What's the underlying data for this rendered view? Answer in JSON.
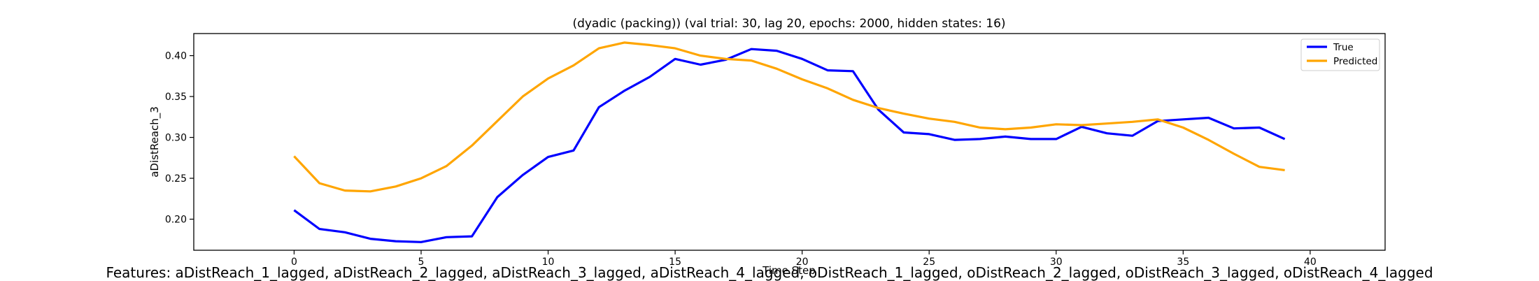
{
  "chart_data": {
    "type": "line",
    "title": "(dyadic (packing)) (val trial: 30, lag 20, epochs: 2000, hidden states: 16)",
    "xlabel": "Time Step",
    "ylabel": "aDistReach_3",
    "xlim": [
      -3.95,
      42.95
    ],
    "ylim": [
      0.162,
      0.427
    ],
    "xticks": [
      0,
      5,
      10,
      15,
      20,
      25,
      30,
      35,
      40
    ],
    "yticks": [
      0.2,
      0.25,
      0.3,
      0.35,
      0.4
    ],
    "grid": false,
    "legend_position": "top-right",
    "x": [
      0,
      1,
      2,
      3,
      4,
      5,
      6,
      7,
      8,
      9,
      10,
      11,
      12,
      13,
      14,
      15,
      16,
      17,
      18,
      19,
      20,
      21,
      22,
      23,
      24,
      25,
      26,
      27,
      28,
      29,
      30,
      31,
      32,
      33,
      34,
      35,
      36,
      37,
      38,
      39
    ],
    "series": [
      {
        "name": "True",
        "color": "#0000ff",
        "values": [
          0.211,
          0.188,
          0.184,
          0.176,
          0.173,
          0.172,
          0.178,
          0.179,
          0.227,
          0.254,
          0.276,
          0.284,
          0.337,
          0.357,
          0.374,
          0.396,
          0.389,
          0.395,
          0.408,
          0.406,
          0.396,
          0.382,
          0.381,
          0.334,
          0.306,
          0.304,
          0.297,
          0.298,
          0.301,
          0.298,
          0.298,
          0.313,
          0.305,
          0.302,
          0.32,
          0.322,
          0.324,
          0.311,
          0.312,
          0.298
        ]
      },
      {
        "name": "Predicted",
        "color": "#ffa500",
        "values": [
          0.277,
          0.244,
          0.235,
          0.234,
          0.24,
          0.25,
          0.265,
          0.29,
          0.32,
          0.35,
          0.372,
          0.388,
          0.409,
          0.416,
          0.413,
          0.409,
          0.4,
          0.396,
          0.394,
          0.384,
          0.371,
          0.36,
          0.346,
          0.336,
          0.329,
          0.323,
          0.319,
          0.312,
          0.31,
          0.312,
          0.316,
          0.315,
          0.317,
          0.319,
          0.322,
          0.312,
          0.297,
          0.28,
          0.264,
          0.26
        ]
      }
    ]
  },
  "features_text": "Features: aDistReach_1_lagged, aDistReach_2_lagged, aDistReach_3_lagged, aDistReach_4_lagged, oDistReach_1_lagged, oDistReach_2_lagged, oDistReach_3_lagged, oDistReach_4_lagged"
}
